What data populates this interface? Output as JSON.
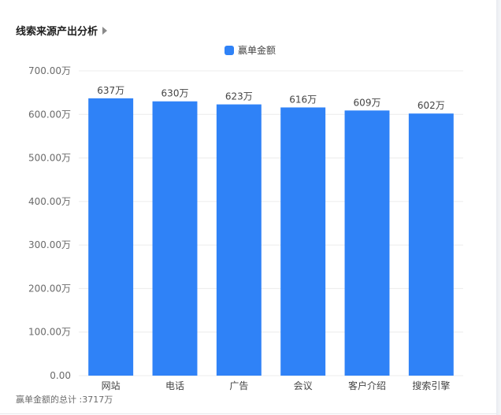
{
  "panel": {
    "title": "线索来源产出分析",
    "footer": "赢单金额的总计 :3717万"
  },
  "colors": {
    "bar": "#2f82f7",
    "grid": "#ececec",
    "axis_text": "#6b6b6b",
    "label_text": "#444444"
  },
  "chart_data": {
    "type": "bar",
    "categories": [
      "网站",
      "电话",
      "广告",
      "会议",
      "客户介绍",
      "搜索引擎"
    ],
    "series": [
      {
        "name": "赢单金额",
        "values": [
          637,
          630,
          623,
          616,
          609,
          602
        ],
        "data_labels": [
          "637万",
          "630万",
          "623万",
          "616万",
          "609万",
          "602万"
        ]
      }
    ],
    "ylim": [
      0,
      700
    ],
    "yticks": [
      0,
      100,
      200,
      300,
      400,
      500,
      600,
      700
    ],
    "ytick_labels": [
      "0.00",
      "100.00万",
      "200.00万",
      "300.00万",
      "400.00万",
      "500.00万",
      "600.00万",
      "700.00万"
    ],
    "xlabel": "",
    "ylabel": "",
    "grid": true,
    "legend_position": "top-center"
  }
}
